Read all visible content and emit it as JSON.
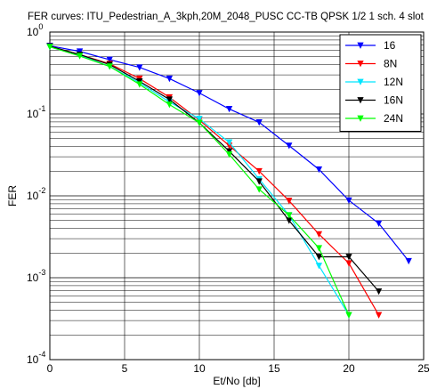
{
  "chart_data": {
    "type": "line",
    "title": "FER curves: ITU_Pedestrian_A_3kph,20M_2048_PUSC CC-TB QPSK 1/2 1 sch. 4 slot",
    "xlabel": "Et/No [db]",
    "ylabel": "FER",
    "xlim": [
      0,
      25
    ],
    "ylim": [
      0.0001,
      1
    ],
    "yscale": "log",
    "grid": true,
    "legend_position": "top-right",
    "x_ticks": [
      {
        "value": 0,
        "label": "0"
      },
      {
        "value": 5,
        "label": "5"
      },
      {
        "value": 10,
        "label": "10"
      },
      {
        "value": 15,
        "label": "15"
      },
      {
        "value": 20,
        "label": "20"
      },
      {
        "value": 25,
        "label": "25"
      }
    ],
    "y_ticks": [
      {
        "exp": 0,
        "base": "10",
        "sup": "0"
      },
      {
        "exp": -1,
        "base": "10",
        "sup": "-1"
      },
      {
        "exp": -2,
        "base": "10",
        "sup": "-2"
      },
      {
        "exp": -3,
        "base": "10",
        "sup": "-3"
      },
      {
        "exp": -4,
        "base": "10",
        "sup": "-4"
      }
    ],
    "series": [
      {
        "name": "16",
        "color": "#0000ff",
        "x": [
          0,
          2,
          4,
          6,
          8,
          10,
          12,
          14,
          16,
          18,
          20,
          22,
          24
        ],
        "y": [
          0.68,
          0.58,
          0.46,
          0.37,
          0.27,
          0.18,
          0.115,
          0.079,
          0.041,
          0.021,
          0.0088,
          0.0046,
          0.0016
        ]
      },
      {
        "name": "8N",
        "color": "#ff0000",
        "x": [
          0,
          2,
          4,
          6,
          8,
          10,
          12,
          14,
          16,
          18,
          20,
          22
        ],
        "y": [
          0.67,
          0.53,
          0.41,
          0.27,
          0.16,
          0.084,
          0.041,
          0.02,
          0.0087,
          0.0034,
          0.0015,
          0.00035
        ]
      },
      {
        "name": "12N",
        "color": "#00e5ff",
        "x": [
          0,
          2,
          4,
          6,
          8,
          10,
          12,
          14,
          16,
          18,
          20
        ],
        "y": [
          0.66,
          0.52,
          0.38,
          0.24,
          0.14,
          0.087,
          0.045,
          0.016,
          0.0058,
          0.0014,
          0.00035
        ]
      },
      {
        "name": "16N",
        "color": "#000000",
        "x": [
          0,
          2,
          4,
          6,
          8,
          10,
          12,
          14,
          16,
          18,
          20,
          22
        ],
        "y": [
          0.67,
          0.53,
          0.4,
          0.25,
          0.15,
          0.078,
          0.035,
          0.015,
          0.005,
          0.0018,
          0.0018,
          0.00068
        ]
      },
      {
        "name": "24N",
        "color": "#00ff00",
        "x": [
          0,
          2,
          4,
          6,
          8,
          10,
          12,
          14,
          16,
          18,
          20
        ],
        "y": [
          0.66,
          0.51,
          0.38,
          0.23,
          0.13,
          0.078,
          0.032,
          0.012,
          0.0058,
          0.0023,
          0.00035
        ]
      }
    ]
  }
}
